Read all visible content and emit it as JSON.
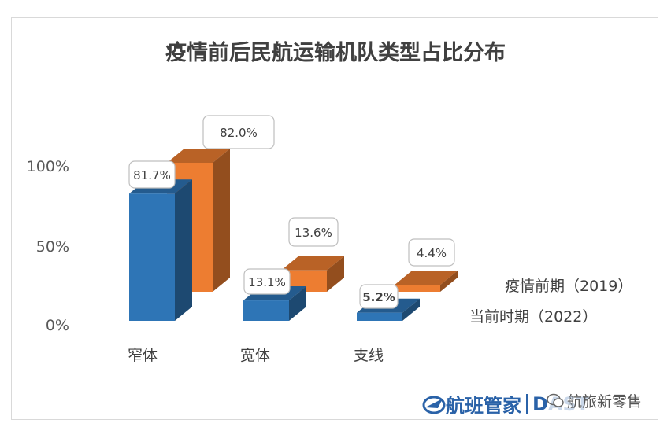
{
  "chart_data": {
    "type": "bar",
    "title": "疫情前后民航运输机队类型占比分布",
    "categories": [
      "窄体",
      "宽体",
      "支线"
    ],
    "series": [
      {
        "name": "当前时期（2022）",
        "values": [
          81.7,
          13.1,
          5.2
        ],
        "labels": [
          "81.7%",
          "13.1%",
          "5.2%"
        ],
        "color": "#2e75b6"
      },
      {
        "name": "疫情前期（2019）",
        "values": [
          82.0,
          13.6,
          4.4
        ],
        "labels": [
          "82.0%",
          "13.6%",
          "4.4%"
        ],
        "color": "#ed7d31"
      }
    ],
    "yticks": [
      "100%",
      "50%",
      "0%"
    ],
    "ylim": [
      0,
      100
    ],
    "legend_position": "right"
  },
  "watermark": {
    "brand": "航班管家",
    "brand_en": "DAST",
    "account": "航旅新零售"
  },
  "colors": {
    "front_series": "#2e75b6",
    "back_series": "#ed7d31",
    "text": "#404040"
  }
}
